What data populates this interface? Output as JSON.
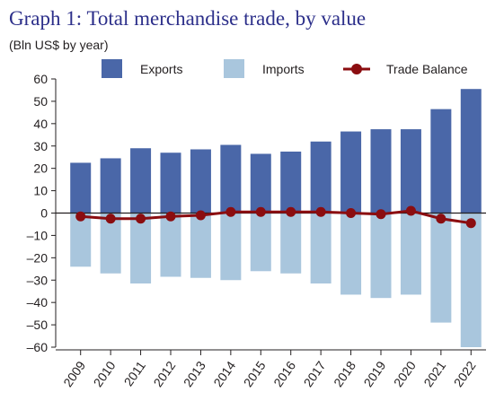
{
  "chart_data": {
    "type": "bar",
    "title": "Graph 1: Total merchandise trade, by value",
    "subtitle": "(Bln US$ by year)",
    "categories": [
      "2009",
      "2010",
      "2011",
      "2012",
      "2013",
      "2014",
      "2015",
      "2016",
      "2017",
      "2018",
      "2019",
      "2020",
      "2021",
      "2022"
    ],
    "series": [
      {
        "name": "Exports",
        "kind": "bar",
        "color": "#4a67a8",
        "values": [
          22.5,
          24.5,
          29,
          27,
          28.5,
          30.5,
          26.5,
          27.5,
          32,
          36.5,
          37.5,
          37.5,
          46.5,
          55.5
        ]
      },
      {
        "name": "Imports",
        "kind": "bar",
        "color": "#a9c6dd",
        "values": [
          -24,
          -27,
          -31.5,
          -28.5,
          -29,
          -30,
          -26,
          -27,
          -31.5,
          -36.5,
          -38,
          -36.5,
          -49,
          -60
        ]
      },
      {
        "name": "Trade Balance",
        "kind": "line",
        "color": "#8b0d10",
        "values": [
          -1.5,
          -2.5,
          -2.5,
          -1.5,
          -1,
          0.5,
          0.5,
          0.5,
          0.5,
          0,
          -0.5,
          1,
          -2.5,
          -4.5
        ]
      }
    ],
    "ylim": [
      -60,
      60
    ],
    "yticks": [
      60,
      50,
      40,
      30,
      20,
      10,
      0,
      -10,
      -20,
      -30,
      -40,
      -50,
      -60
    ],
    "legend_position": "top"
  }
}
